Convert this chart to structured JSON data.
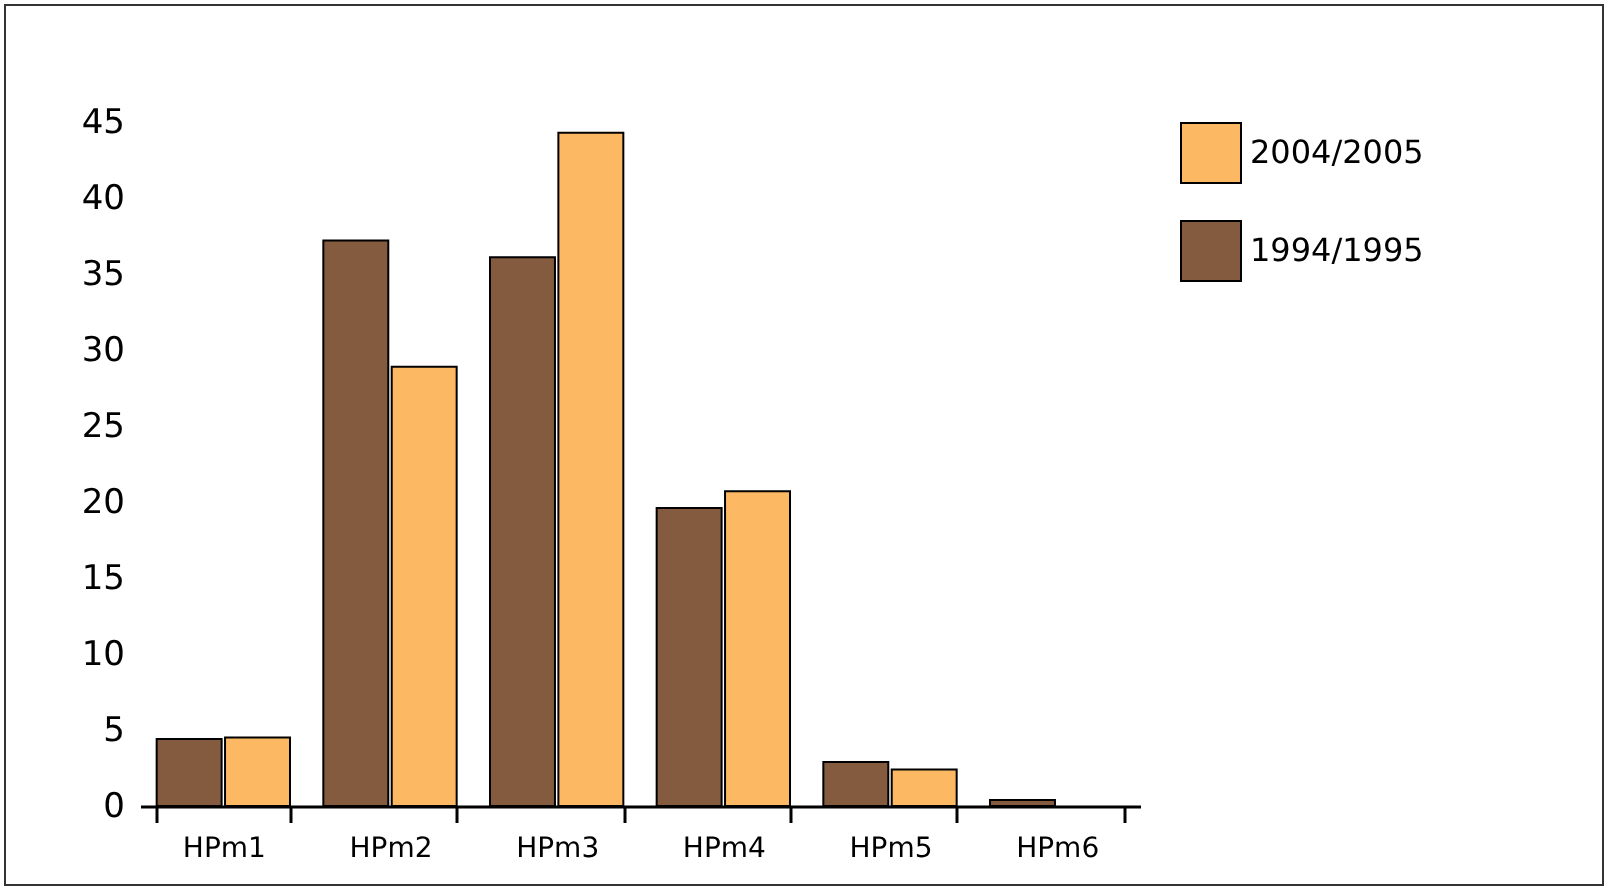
{
  "chart_data": {
    "type": "bar",
    "categories": [
      "HPm1",
      "HPm2",
      "HPm3",
      "HPm4",
      "HPm5",
      "HPm6"
    ],
    "series": [
      {
        "name": "1994/1995",
        "color": "#845b3f",
        "values": [
          4.4,
          37.2,
          36.1,
          19.6,
          2.9,
          0.4
        ]
      },
      {
        "name": "2004/2005",
        "color": "#fdb863",
        "values": [
          4.5,
          28.9,
          44.3,
          20.7,
          2.4,
          null
        ]
      }
    ],
    "ylim": [
      0,
      45
    ],
    "yticks": [
      0,
      5,
      10,
      15,
      20,
      25,
      30,
      35,
      40,
      45
    ],
    "grid": false,
    "legend": "top right"
  }
}
